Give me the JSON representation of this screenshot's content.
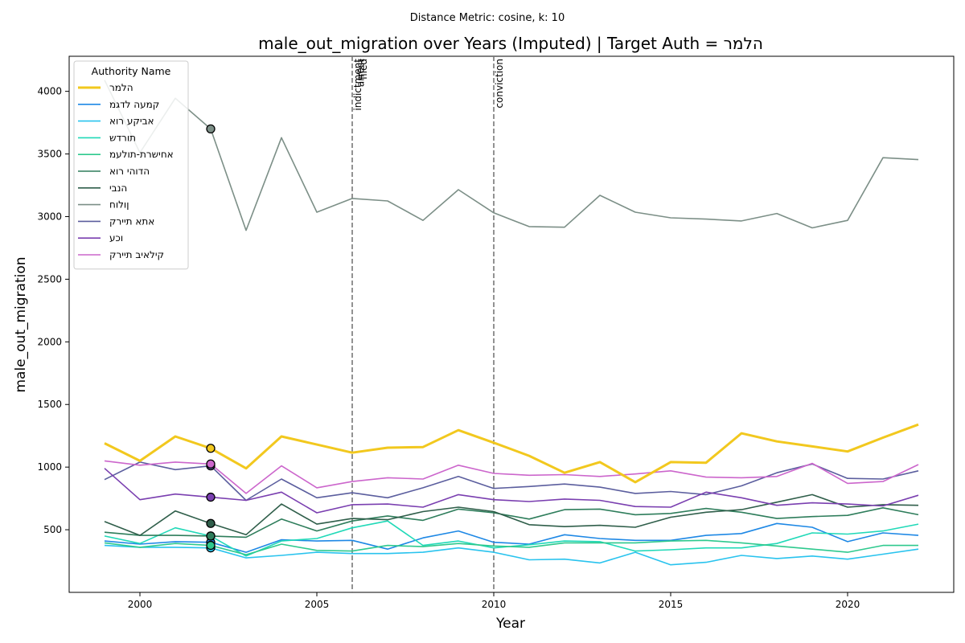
{
  "chart_data": {
    "type": "line",
    "suptitle": "Distance Metric: cosine, k: 10",
    "title": "male_out_migration over Years (Imputed) | Target Auth = הלמר",
    "xlabel": "Year",
    "ylabel": "male_out_migration",
    "xlim": [
      1998,
      2023
    ],
    "ylim": [
      0,
      4280
    ],
    "x_ticks": [
      2000,
      2005,
      2010,
      2015,
      2020
    ],
    "y_ticks": [
      500,
      1000,
      1500,
      2000,
      2500,
      3000,
      3500,
      4000
    ],
    "grid": false,
    "legend": {
      "title": "Authority Name",
      "placement": "upper-left"
    },
    "events": [
      {
        "year": 2006,
        "label": "indictment"
      },
      {
        "year": 2006,
        "label": "arrest"
      },
      {
        "year": 2006,
        "label": "filed"
      },
      {
        "year": 2010,
        "label": "conviction"
      }
    ],
    "marker_year": 2002,
    "x": [
      1999,
      2000,
      2001,
      2002,
      2003,
      2004,
      2005,
      2006,
      2007,
      2008,
      2009,
      2010,
      2011,
      2012,
      2013,
      2014,
      2015,
      2016,
      2017,
      2018,
      2019,
      2020,
      2021,
      2022
    ],
    "series": [
      {
        "name": "הלמר",
        "color": "#f2c81e",
        "target": true,
        "values": [
          1190,
          1050,
          1245,
          1150,
          990,
          1245,
          1180,
          1115,
          1155,
          1160,
          1295,
          1195,
          1090,
          955,
          1040,
          880,
          1040,
          1035,
          1270,
          1205,
          1165,
          1125,
          1235,
          1340
        ]
      },
      {
        "name": "קמעה לדגמ",
        "color": "#1e88e5",
        "values": [
          410,
          385,
          405,
          400,
          320,
          420,
          410,
          415,
          345,
          435,
          490,
          400,
          385,
          460,
          430,
          415,
          415,
          455,
          470,
          550,
          520,
          405,
          475,
          455
        ]
      },
      {
        "name": "אביקע רוא",
        "color": "#29c3ee",
        "values": [
          375,
          360,
          360,
          355,
          275,
          295,
          320,
          310,
          310,
          320,
          355,
          320,
          260,
          265,
          235,
          320,
          220,
          240,
          295,
          270,
          290,
          265,
          305,
          345
        ]
      },
      {
        "name": "תורדש",
        "color": "#21d9b8",
        "values": [
          450,
          390,
          515,
          450,
          290,
          410,
          430,
          515,
          570,
          375,
          410,
          355,
          380,
          410,
          405,
          330,
          340,
          355,
          355,
          390,
          475,
          465,
          490,
          545
        ]
      },
      {
        "name": "אחישרת-תולעמ",
        "color": "#2ec98e",
        "values": [
          395,
          360,
          390,
          375,
          300,
          385,
          335,
          330,
          375,
          365,
          390,
          370,
          360,
          395,
          395,
          395,
          410,
          415,
          395,
          370,
          345,
          320,
          375,
          375
        ]
      },
      {
        "name": "הדוהי רוא",
        "color": "#2e7d5b",
        "values": [
          480,
          455,
          455,
          450,
          440,
          585,
          490,
          570,
          610,
          575,
          665,
          635,
          585,
          660,
          665,
          620,
          630,
          670,
          640,
          590,
          605,
          615,
          675,
          620
        ]
      },
      {
        "name": "הנבי",
        "color": "#2f5e4a",
        "values": [
          565,
          455,
          650,
          550,
          460,
          705,
          545,
          590,
          580,
          645,
          680,
          645,
          540,
          525,
          535,
          520,
          600,
          640,
          660,
          720,
          780,
          680,
          700,
          695
        ]
      },
      {
        "name": "ןולוח",
        "color": "#7c8f87",
        "values": [
          4090,
          3510,
          3945,
          3700,
          2890,
          3630,
          3035,
          3145,
          3125,
          2970,
          3215,
          3030,
          2920,
          2915,
          3170,
          3035,
          2990,
          2980,
          2965,
          3025,
          2910,
          2970,
          3470,
          3455
        ]
      },
      {
        "name": "אתא תיירק",
        "color": "#5b5e9e",
        "values": [
          900,
          1040,
          980,
          1010,
          735,
          905,
          755,
          795,
          755,
          835,
          925,
          830,
          845,
          865,
          840,
          790,
          805,
          780,
          850,
          955,
          1025,
          910,
          905,
          970
        ]
      },
      {
        "name": "וכע",
        "color": "#7a3fb0",
        "values": [
          990,
          740,
          785,
          760,
          735,
          800,
          635,
          700,
          705,
          680,
          780,
          740,
          725,
          745,
          735,
          685,
          680,
          800,
          755,
          695,
          715,
          705,
          690,
          775
        ]
      },
      {
        "name": "קילאיב תיירק",
        "color": "#cc66cc",
        "values": [
          1050,
          1015,
          1040,
          1025,
          790,
          1010,
          835,
          885,
          915,
          905,
          1015,
          950,
          935,
          940,
          925,
          945,
          970,
          920,
          915,
          925,
          1030,
          870,
          885,
          1020
        ]
      }
    ]
  }
}
